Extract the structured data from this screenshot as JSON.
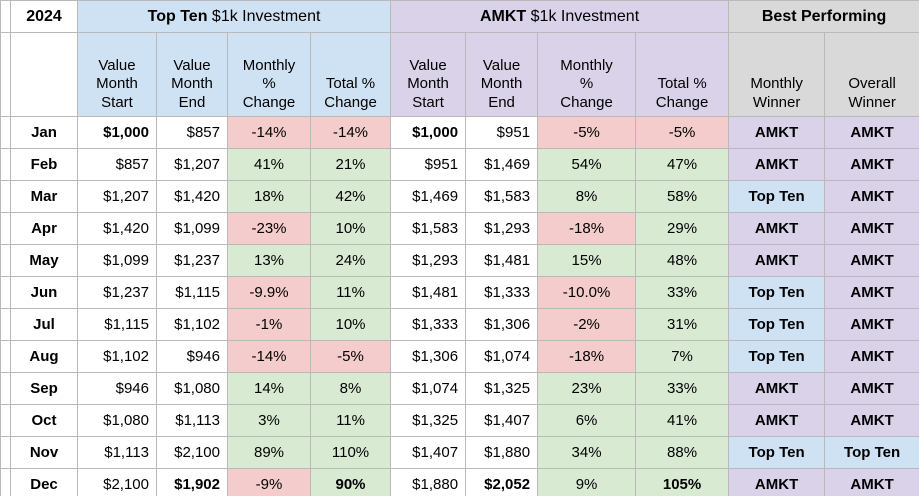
{
  "colors": {
    "topten_blue": "#cfe2f3",
    "amkt_purple": "#d9d2e9",
    "best_gray": "#d9d9d9",
    "negative_red": "#f4cccc",
    "positive_green": "#d9ead3",
    "gridline": "#b9b9b9"
  },
  "header": {
    "year": "2024",
    "groups": [
      {
        "bold": "Top Ten",
        "rest": " $1k Investment"
      },
      {
        "bold": "AMKT",
        "rest": " $1k Investment"
      },
      {
        "bold": "Best Performing",
        "rest": ""
      }
    ],
    "columns": [
      "Value\nMonth\nStart",
      "Value\nMonth\nEnd",
      "Monthly\n%\nChange",
      "Total %\nChange",
      "Value\nMonth\nStart",
      "Value\nMonth\nEnd",
      "Monthly\n%\nChange",
      "Total %\nChange",
      "Monthly\nWinner",
      "Overall\nWinner"
    ]
  },
  "rows": [
    {
      "month": "Jan",
      "cells": [
        "$1,000",
        "$857",
        "-14%",
        "-14%",
        "$1,000",
        "$951",
        "-5%",
        "-5%"
      ],
      "bold": [
        0,
        4
      ],
      "winners": [
        "AMKT",
        "AMKT"
      ]
    },
    {
      "month": "Feb",
      "cells": [
        "$857",
        "$1,207",
        "41%",
        "21%",
        "$951",
        "$1,469",
        "54%",
        "47%"
      ],
      "bold": [],
      "winners": [
        "AMKT",
        "AMKT"
      ]
    },
    {
      "month": "Mar",
      "cells": [
        "$1,207",
        "$1,420",
        "18%",
        "42%",
        "$1,469",
        "$1,583",
        "8%",
        "58%"
      ],
      "bold": [],
      "winners": [
        "Top Ten",
        "AMKT"
      ]
    },
    {
      "month": "Apr",
      "cells": [
        "$1,420",
        "$1,099",
        "-23%",
        "10%",
        "$1,583",
        "$1,293",
        "-18%",
        "29%"
      ],
      "bold": [],
      "winners": [
        "AMKT",
        "AMKT"
      ]
    },
    {
      "month": "May",
      "cells": [
        "$1,099",
        "$1,237",
        "13%",
        "24%",
        "$1,293",
        "$1,481",
        "15%",
        "48%"
      ],
      "bold": [],
      "winners": [
        "AMKT",
        "AMKT"
      ]
    },
    {
      "month": "Jun",
      "cells": [
        "$1,237",
        "$1,115",
        "-9.9%",
        "11%",
        "$1,481",
        "$1,333",
        "-10.0%",
        "33%"
      ],
      "bold": [],
      "winners": [
        "Top Ten",
        "AMKT"
      ]
    },
    {
      "month": "Jul",
      "cells": [
        "$1,115",
        "$1,102",
        "-1%",
        "10%",
        "$1,333",
        "$1,306",
        "-2%",
        "31%"
      ],
      "bold": [],
      "winners": [
        "Top Ten",
        "AMKT"
      ]
    },
    {
      "month": "Aug",
      "cells": [
        "$1,102",
        "$946",
        "-14%",
        "-5%",
        "$1,306",
        "$1,074",
        "-18%",
        "7%"
      ],
      "bold": [],
      "winners": [
        "Top Ten",
        "AMKT"
      ]
    },
    {
      "month": "Sep",
      "cells": [
        "$946",
        "$1,080",
        "14%",
        "8%",
        "$1,074",
        "$1,325",
        "23%",
        "33%"
      ],
      "bold": [],
      "winners": [
        "AMKT",
        "AMKT"
      ]
    },
    {
      "month": "Oct",
      "cells": [
        "$1,080",
        "$1,113",
        "3%",
        "11%",
        "$1,325",
        "$1,407",
        "6%",
        "41%"
      ],
      "bold": [],
      "winners": [
        "AMKT",
        "AMKT"
      ]
    },
    {
      "month": "Nov",
      "cells": [
        "$1,113",
        "$2,100",
        "89%",
        "110%",
        "$1,407",
        "$1,880",
        "34%",
        "88%"
      ],
      "bold": [],
      "winners": [
        "Top Ten",
        "Top Ten"
      ]
    },
    {
      "month": "Dec",
      "cells": [
        "$2,100",
        "$1,902",
        "-9%",
        "90%",
        "$1,880",
        "$2,052",
        "9%",
        "105%"
      ],
      "bold": [
        1,
        3,
        5,
        7
      ],
      "winners": [
        "AMKT",
        "AMKT"
      ]
    }
  ]
}
